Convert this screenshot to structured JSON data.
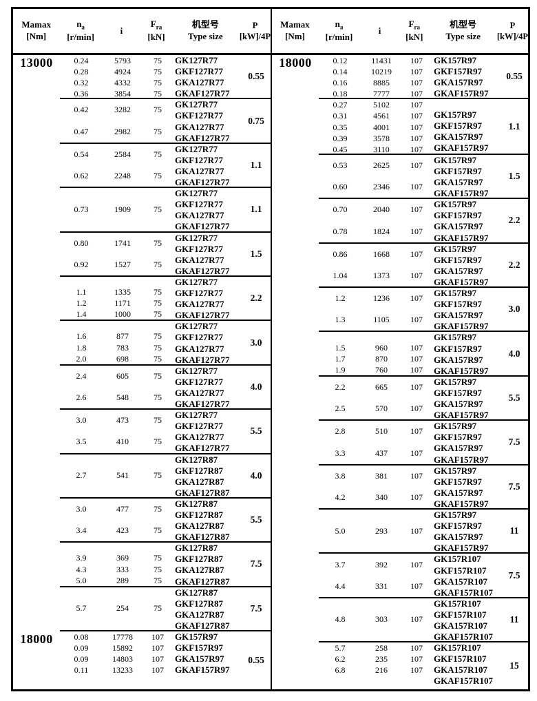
{
  "page": {
    "background": "#ffffff",
    "line_color": "#000000"
  },
  "header": {
    "mamax1": "Mamax",
    "mamax2": "[Nm]",
    "na1": "n",
    "na_sub": "a",
    "na2": "[r/min]",
    "i": "i",
    "fra1": "F",
    "fra_sub": "ra",
    "fra2": "[kN]",
    "type1": "机型号",
    "type2": "Type size",
    "p1": "P",
    "p2": "[kW]/4P"
  },
  "halves": [
    {
      "groups": [
        {
          "mamax": "13000",
          "mode": "aligned",
          "na": [
            "0.24",
            "0.28",
            "0.32",
            "0.36"
          ],
          "i": [
            "5793",
            "4924",
            "4332",
            "3854"
          ],
          "fra": [
            "75",
            "75",
            "75",
            "75"
          ],
          "types": [
            "GK127R77",
            "GKF127R77",
            "GKA127R77",
            "GKAF127R77"
          ],
          "p": "0.55"
        },
        {
          "mamax": "",
          "mode": "distribute",
          "na": [
            "0.42",
            "0.47"
          ],
          "i": [
            "3282",
            "2982"
          ],
          "fra": [
            "75",
            "75"
          ],
          "types": [
            "GK127R77",
            "GKF127R77",
            "GKA127R77",
            "GKAF127R77"
          ],
          "p": "0.75"
        },
        {
          "mamax": "",
          "mode": "distribute",
          "na": [
            "0.54",
            "0.62"
          ],
          "i": [
            "2584",
            "2248"
          ],
          "fra": [
            "75",
            "75"
          ],
          "types": [
            "GK127R77",
            "GKF127R77",
            "GKA127R77",
            "GKAF127R77"
          ],
          "p": "1.1"
        },
        {
          "mamax": "",
          "mode": "distribute",
          "na": [
            "0.73"
          ],
          "i": [
            "1909"
          ],
          "fra": [
            "75"
          ],
          "types": [
            "GK127R77",
            "GKF127R77",
            "GKA127R77",
            "GKAF127R77"
          ],
          "p": "1.1"
        },
        {
          "mamax": "",
          "mode": "distribute",
          "na": [
            "0.80",
            "0.92"
          ],
          "i": [
            "1741",
            "1527"
          ],
          "fra": [
            "75",
            "75"
          ],
          "types": [
            "GK127R77",
            "GKF127R77",
            "GKA127R77",
            "GKAF127R77"
          ],
          "p": "1.5"
        },
        {
          "mamax": "",
          "mode": "aligned",
          "na": [
            "",
            "1.1",
            "1.2",
            "1.4"
          ],
          "i": [
            "",
            "1335",
            "1171",
            "1000"
          ],
          "fra": [
            "",
            "75",
            "75",
            "75"
          ],
          "types": [
            "GK127R77",
            "GKF127R77",
            "GKA127R77",
            "GKAF127R77"
          ],
          "p": "2.2"
        },
        {
          "mamax": "",
          "mode": "aligned",
          "na": [
            "",
            "1.6",
            "1.8",
            "2.0"
          ],
          "i": [
            "",
            "877",
            "783",
            "698"
          ],
          "fra": [
            "",
            "75",
            "75",
            "75"
          ],
          "types": [
            "GK127R77",
            "GKF127R77",
            "GKA127R77",
            "GKAF127R77"
          ],
          "p": "3.0"
        },
        {
          "mamax": "",
          "mode": "distribute",
          "na": [
            "2.4",
            "2.6"
          ],
          "i": [
            "605",
            "548"
          ],
          "fra": [
            "75",
            "75"
          ],
          "types": [
            "GK127R77",
            "GKF127R77",
            "GKA127R77",
            "GKAF127R77"
          ],
          "p": "4.0"
        },
        {
          "mamax": "",
          "mode": "distribute",
          "na": [
            "3.0",
            "3.5"
          ],
          "i": [
            "473",
            "410"
          ],
          "fra": [
            "75",
            "75"
          ],
          "types": [
            "GK127R77",
            "GKF127R77",
            "GKA127R77",
            "GKAF127R77"
          ],
          "p": "5.5"
        },
        {
          "mamax": "",
          "mode": "distribute",
          "na": [
            "2.7"
          ],
          "i": [
            "541"
          ],
          "fra": [
            "75"
          ],
          "types": [
            "GK127R87",
            "GKF127R87",
            "GKA127R87",
            "GKAF127R87"
          ],
          "p": "4.0"
        },
        {
          "mamax": "",
          "mode": "distribute",
          "na": [
            "3.0",
            "3.4"
          ],
          "i": [
            "477",
            "423"
          ],
          "fra": [
            "75",
            "75"
          ],
          "types": [
            "GK127R87",
            "GKF127R87",
            "GKA127R87",
            "GKAF127R87"
          ],
          "p": "5.5"
        },
        {
          "mamax": "",
          "mode": "aligned",
          "na": [
            "",
            "3.9",
            "4.3",
            "5.0"
          ],
          "i": [
            "",
            "369",
            "333",
            "289"
          ],
          "fra": [
            "",
            "75",
            "75",
            "75"
          ],
          "types": [
            "GK127R87",
            "GKF127R87",
            "GKA127R87",
            "GKAF127R87"
          ],
          "p": "7.5"
        },
        {
          "mamax": "",
          "mode": "distribute",
          "na": [
            "5.7"
          ],
          "i": [
            "254"
          ],
          "fra": [
            "75"
          ],
          "types": [
            "GK127R87",
            "GKF127R87",
            "GKA127R87",
            "GKAF127R87"
          ],
          "p": "7.5"
        },
        {
          "mamax": "18000",
          "mode": "aligned",
          "na": [
            "0.08",
            "0.09",
            "0.09",
            "0.11"
          ],
          "i": [
            "17778",
            "15892",
            "14803",
            "13233"
          ],
          "fra": [
            "107",
            "107",
            "107",
            "107"
          ],
          "types": [
            "GK157R97",
            "GKF157R97",
            "GKA157R97",
            "GKAF157R97"
          ],
          "p": "0.55"
        }
      ]
    },
    {
      "groups": [
        {
          "mamax": "18000",
          "mode": "aligned",
          "na": [
            "0.12",
            "0.14",
            "0.16",
            "0.18"
          ],
          "i": [
            "11431",
            "10219",
            "8885",
            "7777"
          ],
          "fra": [
            "107",
            "107",
            "107",
            "107"
          ],
          "types": [
            "GK157R97",
            "GKF157R97",
            "GKA157R97",
            "GKAF157R97"
          ],
          "p": "0.55"
        },
        {
          "mamax": "",
          "mode": "aligned",
          "na": [
            "0.27",
            "0.31",
            "0.35",
            "0.39",
            "0.45"
          ],
          "i": [
            "5102",
            "4561",
            "4001",
            "3578",
            "3110"
          ],
          "fra": [
            "107",
            "107",
            "107",
            "107",
            "107"
          ],
          "types": [
            "",
            "GK157R97",
            "GKF157R97",
            "GKA157R97",
            "GKAF157R97"
          ],
          "p": "1.1"
        },
        {
          "mamax": "",
          "mode": "distribute",
          "na": [
            "0.53",
            "0.60"
          ],
          "i": [
            "2625",
            "2346"
          ],
          "fra": [
            "107",
            "107"
          ],
          "types": [
            "GK157R97",
            "GKF157R97",
            "GKA157R97",
            "GKAF157R97"
          ],
          "p": "1.5"
        },
        {
          "mamax": "",
          "mode": "distribute",
          "na": [
            "0.70",
            "0.78"
          ],
          "i": [
            "2040",
            "1824"
          ],
          "fra": [
            "107",
            "107"
          ],
          "types": [
            "GK157R97",
            "GKF157R97",
            "GKA157R97",
            "GKAF157R97"
          ],
          "p": "2.2"
        },
        {
          "mamax": "",
          "mode": "distribute",
          "na": [
            "0.86",
            "1.04"
          ],
          "i": [
            "1668",
            "1373"
          ],
          "fra": [
            "107",
            "107"
          ],
          "types": [
            "GK157R97",
            "GKF157R97",
            "GKA157R97",
            "GKAF157R97"
          ],
          "p": "2.2"
        },
        {
          "mamax": "",
          "mode": "distribute",
          "na": [
            "1.2",
            "1.3"
          ],
          "i": [
            "1236",
            "1105"
          ],
          "fra": [
            "107",
            "107"
          ],
          "types": [
            "GK157R97",
            "GKF157R97",
            "GKA157R97",
            "GKAF157R97"
          ],
          "p": "3.0"
        },
        {
          "mamax": "",
          "mode": "aligned",
          "na": [
            "",
            "1.5",
            "1.7",
            "1.9"
          ],
          "i": [
            "",
            "960",
            "870",
            "760"
          ],
          "fra": [
            "",
            "107",
            "107",
            "107"
          ],
          "types": [
            "GK157R97",
            "GKF157R97",
            "GKA157R97",
            "GKAF157R97"
          ],
          "p": "4.0"
        },
        {
          "mamax": "",
          "mode": "distribute",
          "na": [
            "2.2",
            "2.5"
          ],
          "i": [
            "665",
            "570"
          ],
          "fra": [
            "107",
            "107"
          ],
          "types": [
            "GK157R97",
            "GKF157R97",
            "GKA157R97",
            "GKAF157R97"
          ],
          "p": "5.5"
        },
        {
          "mamax": "",
          "mode": "distribute",
          "na": [
            "2.8",
            "3.3"
          ],
          "i": [
            "510",
            "437"
          ],
          "fra": [
            "107",
            "107"
          ],
          "types": [
            "GK157R97",
            "GKF157R97",
            "GKA157R97",
            "GKAF157R97"
          ],
          "p": "7.5"
        },
        {
          "mamax": "",
          "mode": "distribute",
          "na": [
            "3.8",
            "4.2"
          ],
          "i": [
            "381",
            "340"
          ],
          "fra": [
            "107",
            "107"
          ],
          "types": [
            "GK157R97",
            "GKF157R97",
            "GKA157R97",
            "GKAF157R97"
          ],
          "p": "7.5"
        },
        {
          "mamax": "",
          "mode": "distribute",
          "na": [
            "5.0"
          ],
          "i": [
            "293"
          ],
          "fra": [
            "107"
          ],
          "types": [
            "GK157R97",
            "GKF157R97",
            "GKA157R97",
            "GKAF157R97"
          ],
          "p": "11"
        },
        {
          "mamax": "",
          "mode": "distribute",
          "na": [
            "3.7",
            "4.4"
          ],
          "i": [
            "392",
            "331"
          ],
          "fra": [
            "107",
            "107"
          ],
          "types": [
            "GK157R107",
            "GKF157R107",
            "GKA157R107",
            "GKAF157R107"
          ],
          "p": "7.5"
        },
        {
          "mamax": "",
          "mode": "distribute",
          "na": [
            "4.8"
          ],
          "i": [
            "303"
          ],
          "fra": [
            "107"
          ],
          "types": [
            "GK157R107",
            "GKF157R107",
            "GKA157R107",
            "GKAF157R107"
          ],
          "p": "11"
        },
        {
          "mamax": "",
          "mode": "aligned",
          "na": [
            "5.7",
            "6.2",
            "6.8",
            ""
          ],
          "i": [
            "258",
            "235",
            "216",
            ""
          ],
          "fra": [
            "107",
            "107",
            "107",
            ""
          ],
          "types": [
            "GK157R107",
            "GKF157R107",
            "GKA157R107",
            "GKAF157R107"
          ],
          "p": "15"
        }
      ]
    }
  ]
}
